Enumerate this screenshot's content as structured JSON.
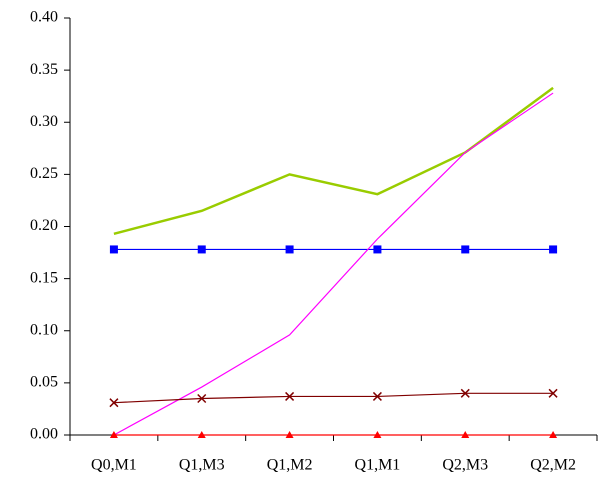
{
  "chart_data": {
    "type": "line",
    "categories": [
      "Q0,M1",
      "Q1,M3",
      "Q1,M2",
      "Q1,M1",
      "Q2,M3",
      "Q2,M2"
    ],
    "series": [
      {
        "color": "#99cc00",
        "marker": "none",
        "width": 2.5,
        "values": [
          0.193,
          0.215,
          0.25,
          0.231,
          0.271,
          0.333
        ]
      },
      {
        "color": "#0000ff",
        "marker": "square",
        "width": 1.2,
        "values": [
          0.178,
          0.178,
          0.178,
          0.178,
          0.178,
          0.178
        ]
      },
      {
        "color": "#ff00ff",
        "marker": "none",
        "width": 1.2,
        "values": [
          0.0,
          0.046,
          0.096,
          0.188,
          0.271,
          0.328
        ]
      },
      {
        "color": "#800000",
        "marker": "x",
        "width": 1.2,
        "values": [
          0.031,
          0.035,
          0.037,
          0.037,
          0.04,
          0.04
        ]
      },
      {
        "color": "#ff0000",
        "marker": "triangle",
        "width": 1.2,
        "values": [
          0,
          0,
          0,
          0,
          0,
          0
        ]
      }
    ],
    "ylim": [
      0,
      0.4
    ],
    "yticks": [
      {
        "value": 0,
        "label": "0.00"
      },
      {
        "value": 0.05,
        "label": "0.05"
      },
      {
        "value": 0.1,
        "label": "0.10"
      },
      {
        "value": 0.15,
        "label": "0.15"
      },
      {
        "value": 0.2,
        "label": "0.20"
      },
      {
        "value": 0.25,
        "label": "0.25"
      },
      {
        "value": 0.3,
        "label": "0.30"
      },
      {
        "value": 0.35,
        "label": "0.35"
      },
      {
        "value": 0.4,
        "label": "0.40"
      }
    ]
  }
}
